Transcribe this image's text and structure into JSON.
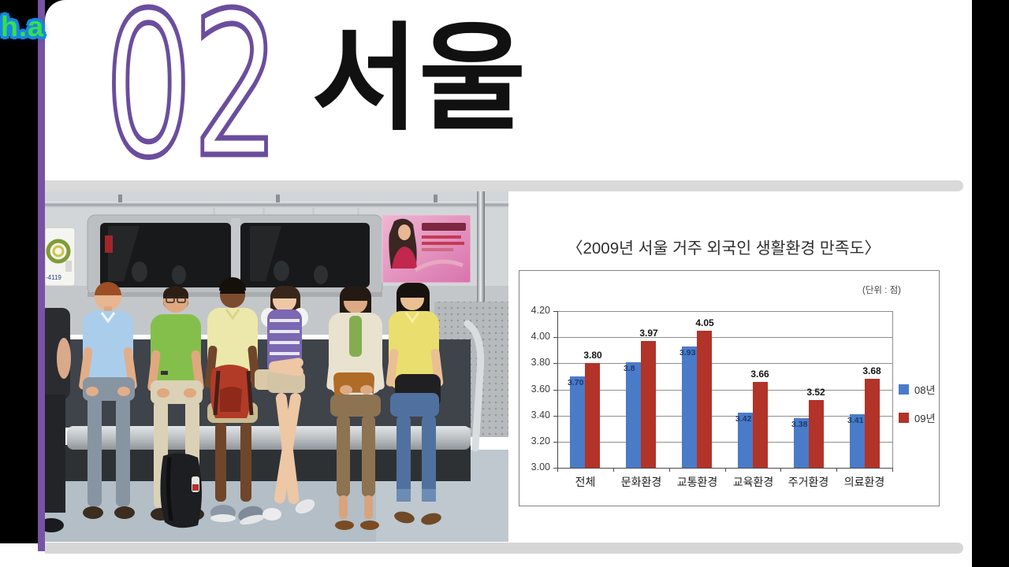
{
  "watermark": "h.a",
  "slide": {
    "section_number": "02",
    "title": "서울"
  },
  "photo": {
    "description": "Seven people of diverse backgrounds sitting on a bench seat inside a Seoul subway car; silver interior, dark door windows, green circular logo plaque at left, pink cosmetic-surgery advertisement poster at right",
    "plate_text": "-4119"
  },
  "chart": {
    "title": "〈2009년 서울 거주 외국인 생활환경 만족도〉",
    "unit_label": "(단위 : 점)"
  },
  "chart_data": {
    "type": "bar",
    "title": "〈2009년 서울 거주 외국인 생활환경 만족도〉",
    "unit": "(단위 : 점)",
    "categories": [
      "전체",
      "문화환경",
      "교통환경",
      "교육환경",
      "주거환경",
      "의료환경"
    ],
    "series": [
      {
        "name": "08년",
        "color": "#4a7bc8",
        "values": [
          3.7,
          3.81,
          3.93,
          3.42,
          3.38,
          3.41
        ],
        "labels": [
          "3.70",
          "3.8",
          "3.93",
          "3.42",
          "3.38",
          "3.41"
        ]
      },
      {
        "name": "09년",
        "color": "#b23327",
        "values": [
          3.8,
          3.97,
          4.05,
          3.66,
          3.52,
          3.68
        ],
        "labels": [
          "3.80",
          "3.97",
          "4.05",
          "3.66",
          "3.52",
          "3.68"
        ]
      }
    ],
    "ylim": [
      3.0,
      4.2
    ],
    "yticks": [
      "4.20",
      "4.00",
      "3.80",
      "3.60",
      "3.40",
      "3.20",
      "3.00"
    ],
    "ytick_step": 0.2,
    "xlabel": "",
    "ylabel": "",
    "grid": true,
    "legend_position": "right"
  },
  "colors": {
    "accent_purple": "#7753a4",
    "section_number_purple": "#6b4d9e",
    "watermark_green": "#35df4d",
    "watermark_blue": "#1787e0",
    "divider_gray": "#d9d9d9",
    "bar_blue": "#4a7bc8",
    "bar_red": "#b23327"
  }
}
